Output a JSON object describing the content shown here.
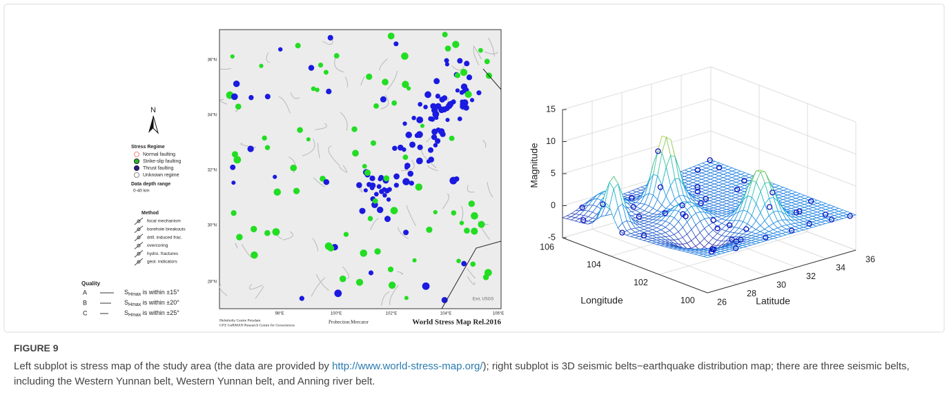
{
  "map": {
    "north": "N",
    "stress_regime": {
      "title": "Stress Regime",
      "items": [
        "Normal faulting",
        "Strike-slip faulting",
        "Thrust faulting",
        "Unknown regime"
      ]
    },
    "depth": {
      "title": "Data depth range",
      "range": "0-40 km"
    },
    "method": {
      "title": "Method",
      "items": [
        "focal mechanism",
        "borehole breakouts",
        "drill. induced frac.",
        "overcoring",
        "hydro. fractures",
        "geol. indicators"
      ]
    },
    "quality": {
      "title": "Quality",
      "rows": [
        {
          "grade": "A",
          "symbol": "S",
          "subscript": "Hmax",
          "text": " is within ±15°"
        },
        {
          "grade": "B",
          "symbol": "S",
          "subscript": "Hmax",
          "text": " is within ±20°"
        },
        {
          "grade": "C",
          "symbol": "S",
          "subscript": "Hmax",
          "text": " is within ±25°"
        }
      ]
    },
    "lat_labels": [
      "36°N",
      "34°N",
      "32°N",
      "30°N",
      "28°N"
    ],
    "lon_labels": [
      "98°E",
      "100°E",
      "102°E",
      "104°E",
      "106°E"
    ],
    "credit": "Esri, USGS",
    "institution": [
      "Helmholtz Centre Potsdam",
      "GFZ GeRMAN Research Centre for Geosciences"
    ],
    "projection": "Probection:Mercator",
    "release": "World Stress Map Rel.2016"
  },
  "plot": {
    "z_label": "Magnitude",
    "z_ticks": [
      15,
      10,
      5,
      0,
      -5
    ],
    "x_label": "Longitude",
    "x_ticks": [
      106,
      104,
      102,
      100
    ],
    "y_label": "Latitude",
    "y_ticks": [
      26,
      28,
      30,
      32,
      34,
      36
    ]
  },
  "figure": {
    "label": "FIGURE 9",
    "caption": {
      "before": "Left subplot is stress map of the study area (the data are provided by ",
      "link": "http://www.world-stress-map.org/",
      "after": "); right subplot is 3D seismic belts−earthquake distribution map; there are three seismic belts, including the Western Yunnan belt, Western Yunnan belt, and Anning river belt."
    }
  }
}
